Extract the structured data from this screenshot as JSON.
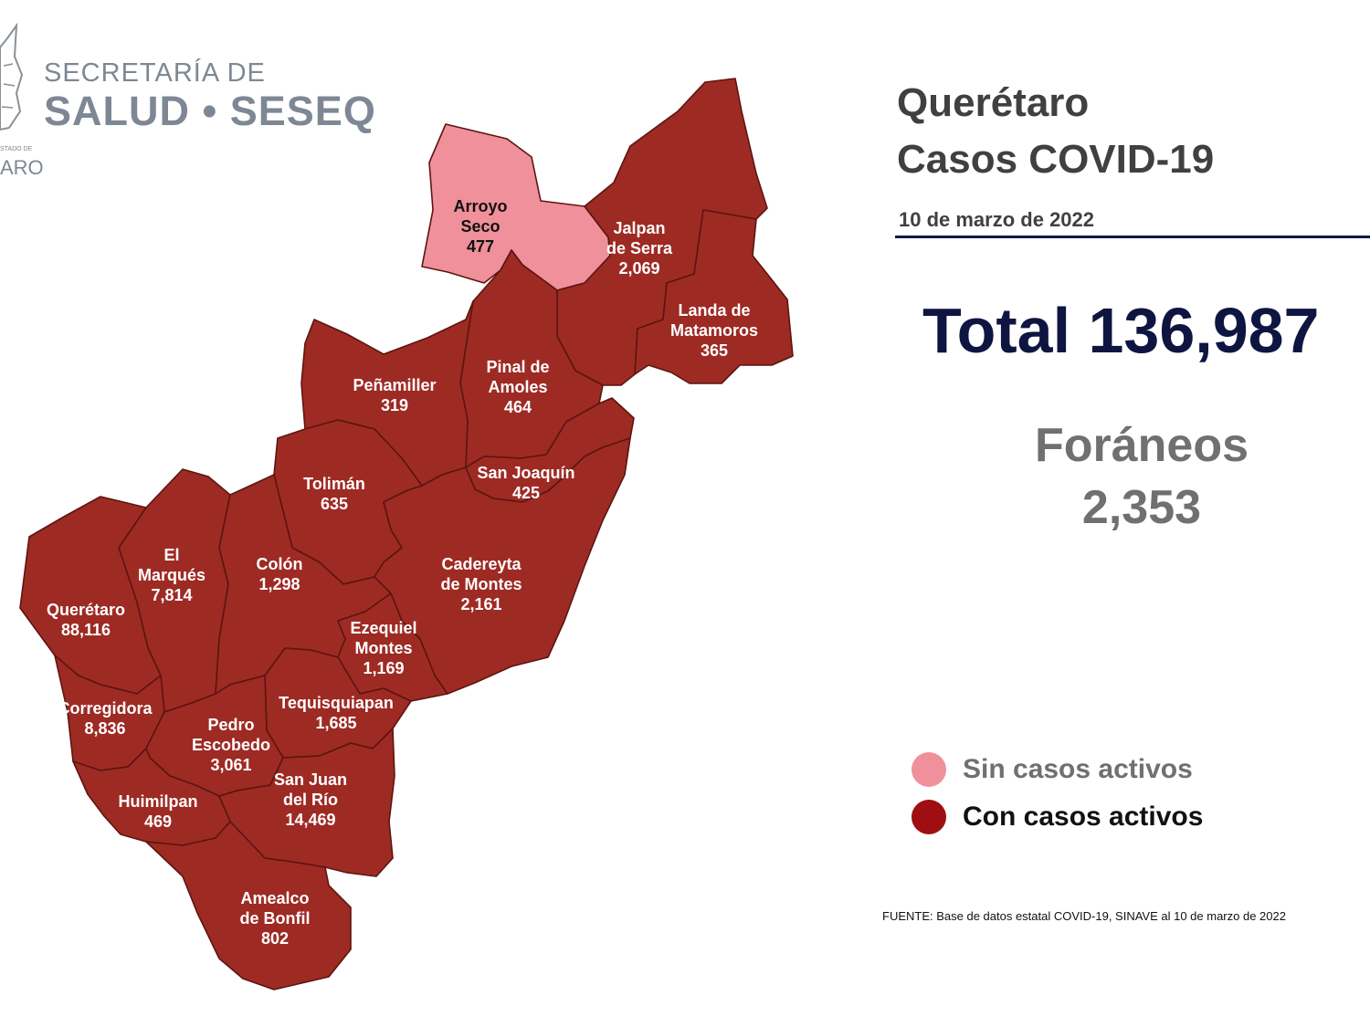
{
  "header": {
    "line1": "SECRETARÍA DE",
    "line2": "SALUD • SESEQ",
    "fragment_small": "STADO DE",
    "fragment_large": "ARO"
  },
  "title": {
    "line1": "Querétaro",
    "line2": "Casos COVID-19",
    "date": "10 de marzo de 2022"
  },
  "total": {
    "label": "Total 136,987"
  },
  "foraneos": {
    "label": "Foráneos",
    "value": "2,353"
  },
  "legend": [
    {
      "label": "Sin casos activos",
      "color": "#f0909a",
      "text_color": "#707070"
    },
    {
      "label": "Con casos activos",
      "color": "#9e0e12",
      "text_color": "#111111"
    }
  ],
  "source": "FUENTE: Base de datos estatal  COVID-19,  SINAVE  al 10 de marzo de 2022",
  "colors": {
    "active": "#9e2a24",
    "inactive": "#f0909a",
    "border": "#5c1510"
  },
  "municipalities": [
    {
      "id": "arroyo-seco",
      "lines": [
        "Arroyo",
        "Seco"
      ],
      "cases": "477",
      "active": false
    },
    {
      "id": "jalpan",
      "lines": [
        "Jalpan",
        "de Serra"
      ],
      "cases": "2,069",
      "active": true
    },
    {
      "id": "landa",
      "lines": [
        "Landa de",
        "Matamoros"
      ],
      "cases": "365",
      "active": true
    },
    {
      "id": "pinal",
      "lines": [
        "Pinal de",
        "Amoles"
      ],
      "cases": "464",
      "active": true
    },
    {
      "id": "penamiller",
      "lines": [
        "Peñamiller"
      ],
      "cases": "319",
      "active": true
    },
    {
      "id": "san-joaquin",
      "lines": [
        "San Joaquín"
      ],
      "cases": "425",
      "active": true
    },
    {
      "id": "toliman",
      "lines": [
        "Tolimán"
      ],
      "cases": "635",
      "active": true
    },
    {
      "id": "cadereyta",
      "lines": [
        "Cadereyta",
        "de Montes"
      ],
      "cases": "2,161",
      "active": true
    },
    {
      "id": "el-marques",
      "lines": [
        "El",
        "Marqués"
      ],
      "cases": "7,814",
      "active": true
    },
    {
      "id": "colon",
      "lines": [
        "Colón"
      ],
      "cases": "1,298",
      "active": true
    },
    {
      "id": "queretaro",
      "lines": [
        "Querétaro"
      ],
      "cases": "88,116",
      "active": true
    },
    {
      "id": "ezequiel",
      "lines": [
        "Ezequiel",
        "Montes"
      ],
      "cases": "1,169",
      "active": true
    },
    {
      "id": "corregidora",
      "lines": [
        "Corregidora"
      ],
      "cases": "8,836",
      "active": true
    },
    {
      "id": "tequisquiapan",
      "lines": [
        "Tequisquiapan"
      ],
      "cases": "1,685",
      "active": true
    },
    {
      "id": "pedro-escobedo",
      "lines": [
        "Pedro",
        "Escobedo"
      ],
      "cases": "3,061",
      "active": true
    },
    {
      "id": "san-juan",
      "lines": [
        "San Juan",
        "del Río"
      ],
      "cases": "14,469",
      "active": true
    },
    {
      "id": "huimilpan",
      "lines": [
        "Huimilpan"
      ],
      "cases": "469",
      "active": true
    },
    {
      "id": "amealco",
      "lines": [
        "Amealco",
        "de Bonfil"
      ],
      "cases": "802",
      "active": true
    }
  ]
}
